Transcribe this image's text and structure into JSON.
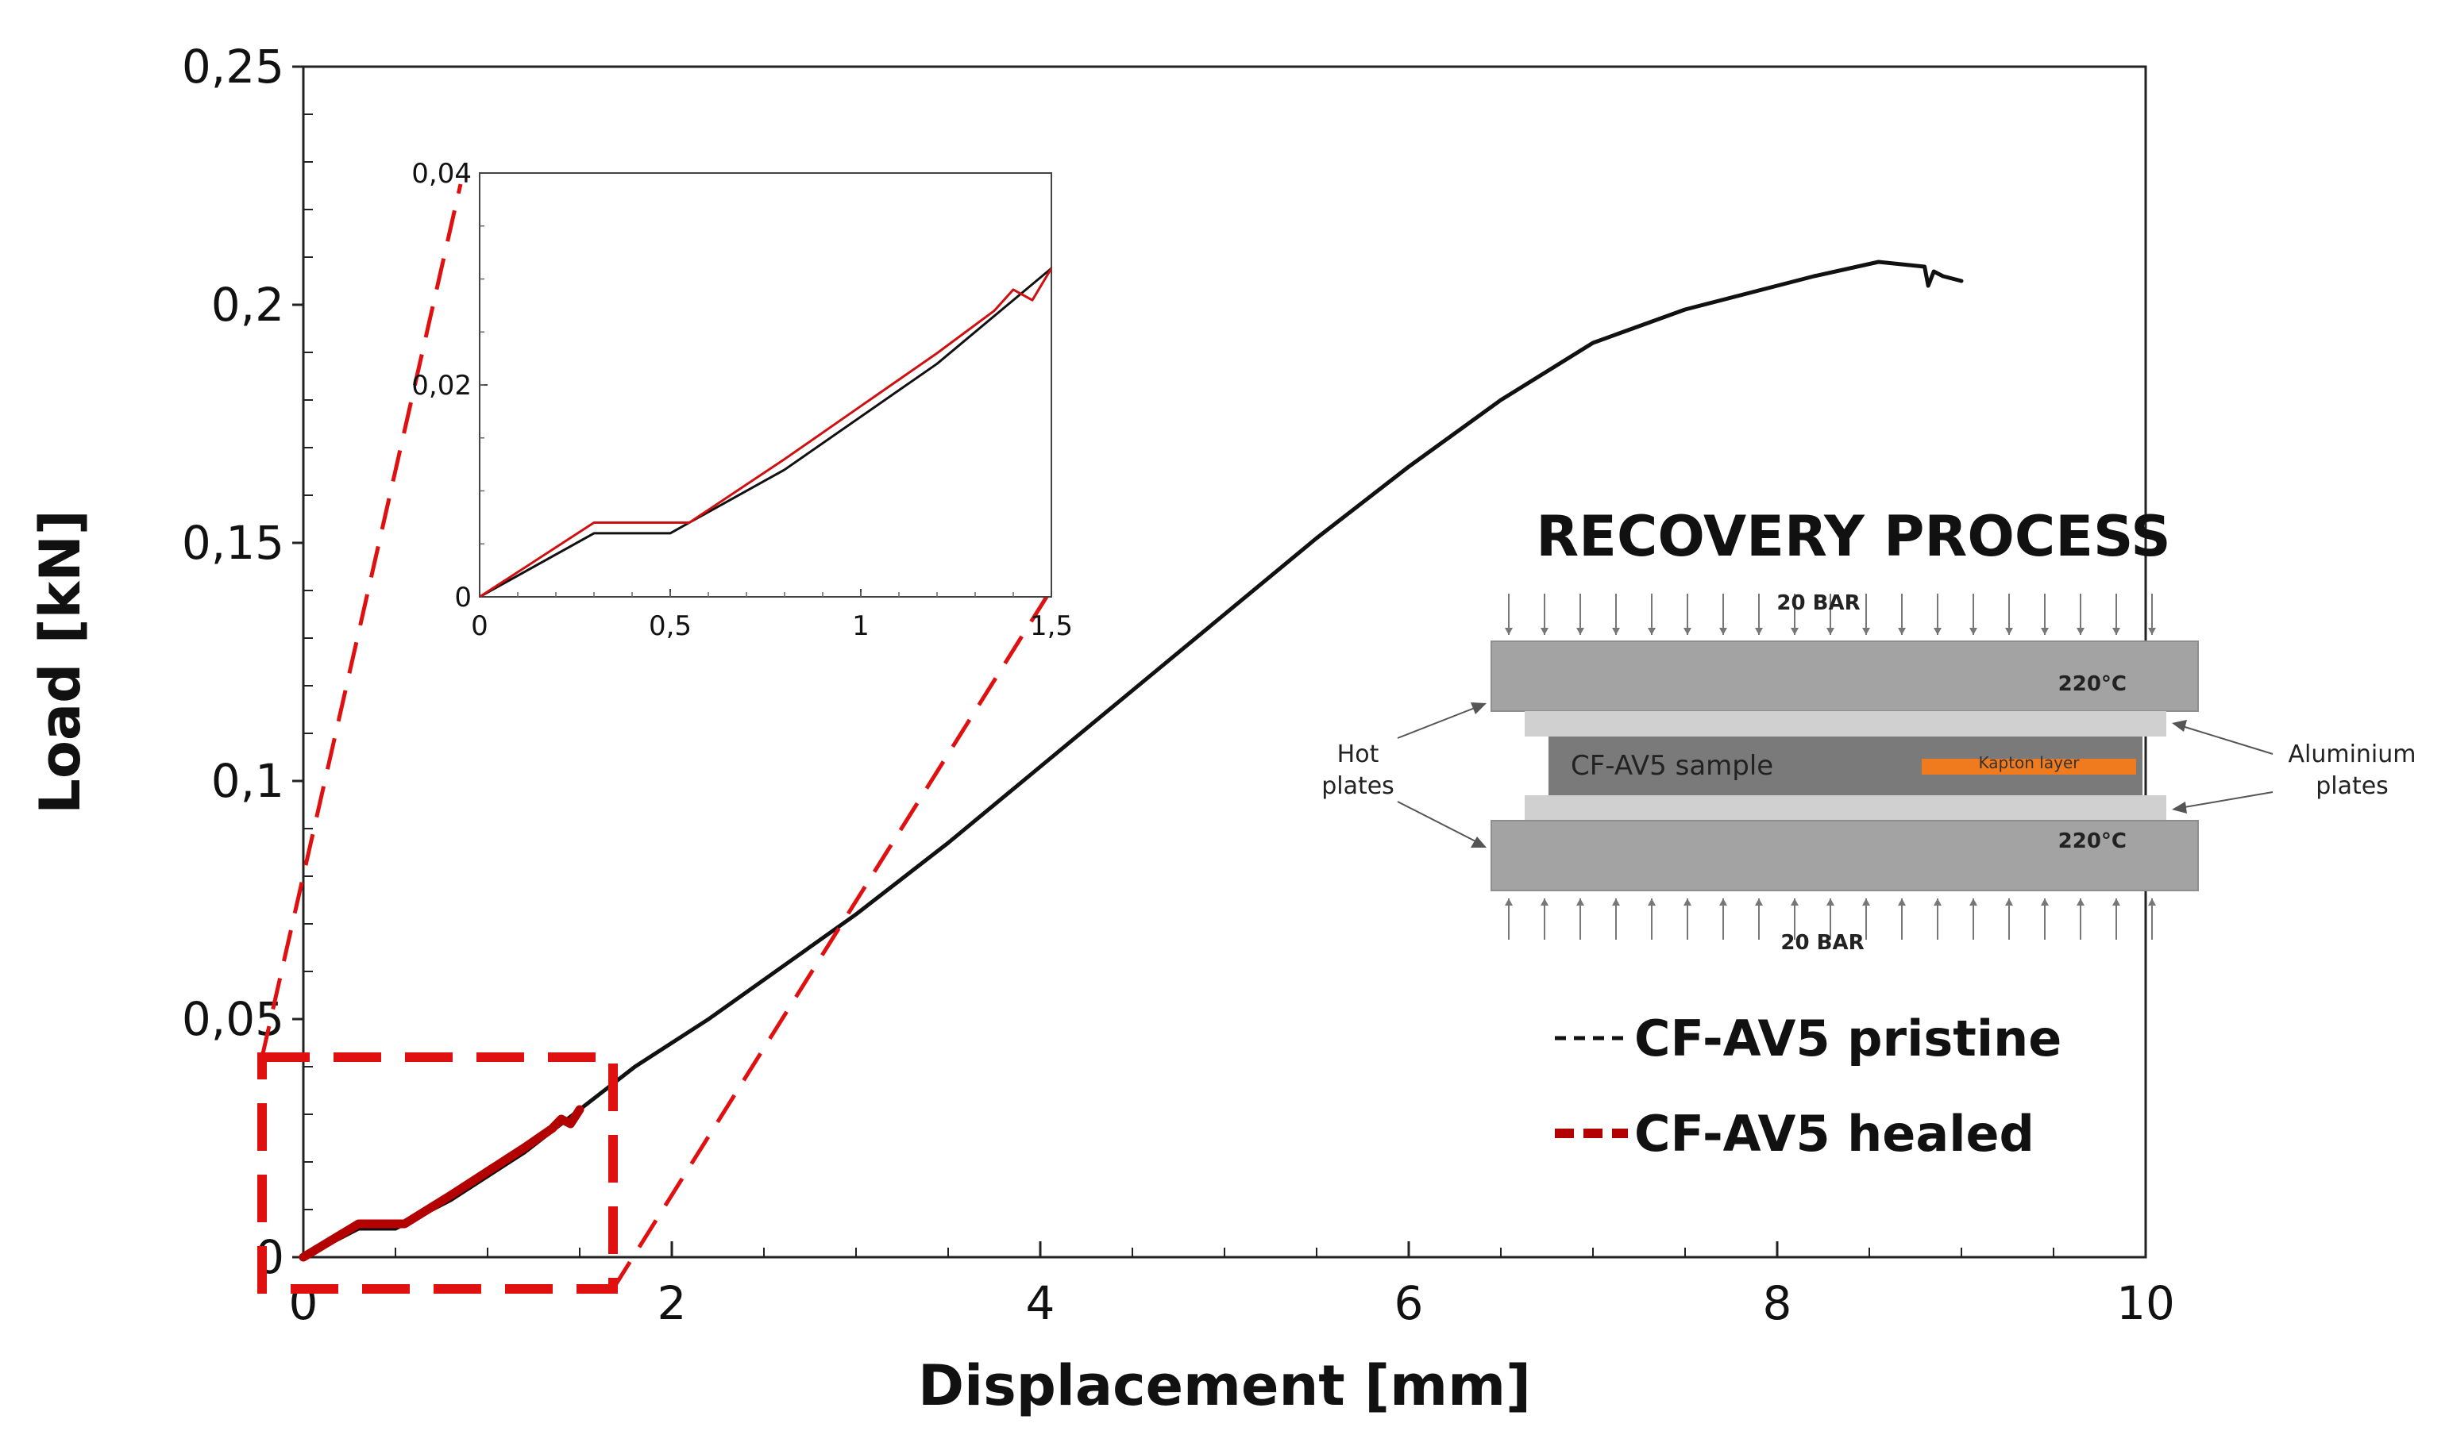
{
  "chart_data": {
    "type": "line",
    "xlabel": "Displacement  [mm]",
    "ylabel": "Load [kN]",
    "xlim": [
      0,
      10
    ],
    "ylim": [
      0,
      0.25
    ],
    "x_ticks": [
      "0",
      "2",
      "4",
      "6",
      "8",
      "10"
    ],
    "y_ticks": [
      "0",
      "0,05",
      "0,1",
      "0,15",
      "0,2",
      "0,25"
    ],
    "grid": false,
    "legend_position": "right",
    "series": [
      {
        "name": "CF-AV5 pristine",
        "color": "#111111",
        "x": [
          0,
          0.3,
          0.5,
          0.55,
          0.8,
          1.2,
          1.5,
          1.8,
          2.2,
          2.6,
          3.0,
          3.5,
          4.0,
          4.5,
          5.0,
          5.5,
          6.0,
          6.5,
          7.0,
          7.5,
          8.0,
          8.2,
          8.55,
          8.8,
          8.82,
          8.85,
          8.9,
          9.0
        ],
        "y": [
          0,
          0.006,
          0.006,
          0.007,
          0.012,
          0.022,
          0.031,
          0.04,
          0.05,
          0.061,
          0.072,
          0.087,
          0.103,
          0.119,
          0.135,
          0.151,
          0.166,
          0.18,
          0.192,
          0.199,
          0.204,
          0.206,
          0.209,
          0.208,
          0.204,
          0.207,
          0.206,
          0.205
        ]
      },
      {
        "name": "CF-AV5 healed",
        "color": "#b30000",
        "x": [
          0,
          0.3,
          0.55,
          0.8,
          1.0,
          1.2,
          1.35,
          1.4,
          1.45,
          1.5
        ],
        "y": [
          0,
          0.007,
          0.007,
          0.013,
          0.018,
          0.023,
          0.027,
          0.029,
          0.028,
          0.031
        ]
      }
    ],
    "inset": {
      "xlim": [
        0,
        1.5
      ],
      "ylim": [
        0,
        0.04
      ],
      "x_ticks": [
        "0",
        "0,5",
        "1",
        "1,5"
      ],
      "y_ticks": [
        "0",
        "0,02",
        "0,04"
      ]
    }
  },
  "diagram": {
    "title": "RECOVERY PROCESS",
    "pressure_top": "20 BAR",
    "pressure_bottom": "20 BAR",
    "temp_top": "220°C",
    "temp_bottom": "220°C",
    "sample": "CF-AV5 sample",
    "kapton": "Kapton layer",
    "hot_plates_line1": "Hot",
    "hot_plates_line2": "plates",
    "aluminium_line1": "Aluminium",
    "aluminium_line2": "plates",
    "colors": {
      "plate": "#a3a3a3",
      "aluminium": "#d0d0d0",
      "sample": "#7a7a7a",
      "kapton": "#f07a1e",
      "zoom_box": "#e01010"
    }
  },
  "legend": {
    "pristine": "CF-AV5 pristine",
    "healed": "CF-AV5 healed"
  }
}
